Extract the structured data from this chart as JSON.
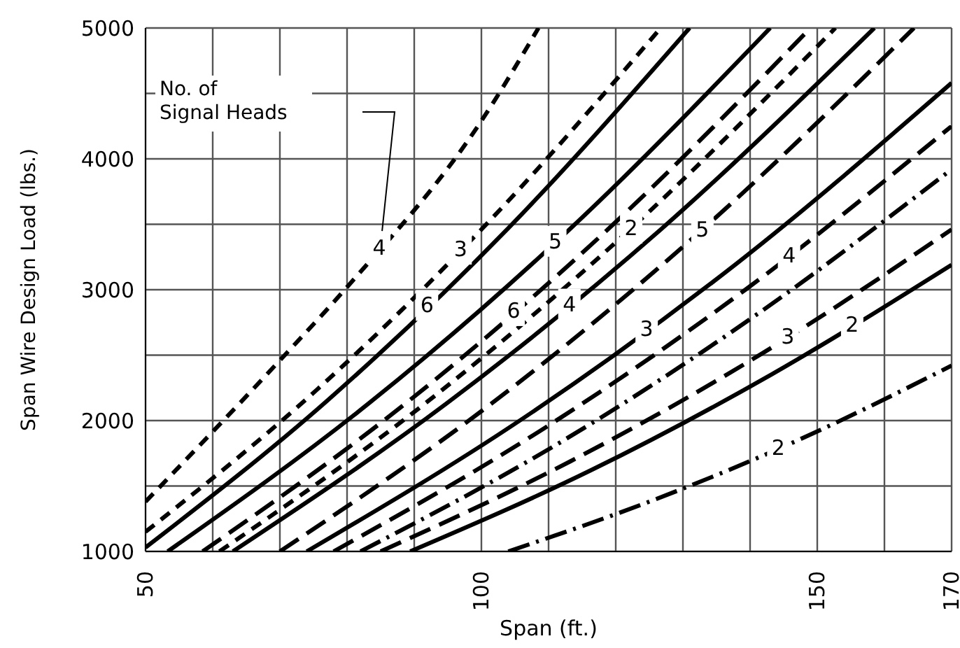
{
  "chart_data": {
    "type": "line",
    "xlabel": "Span (ft.)",
    "ylabel": "Span Wire Design Load (lbs.)",
    "xlim": [
      50,
      170
    ],
    "xticks": [
      50,
      {
        "value": 60,
        "label": null
      },
      {
        "value": 70,
        "label": null
      },
      {
        "value": 80,
        "label": null
      },
      {
        "value": 90,
        "label": null
      },
      100,
      {
        "value": 110,
        "label": null
      },
      {
        "value": 120,
        "label": null
      },
      {
        "value": 130,
        "label": null
      },
      {
        "value": 140,
        "label": null
      },
      150,
      {
        "value": 160,
        "label": null
      },
      170
    ],
    "ylim": [
      1000,
      5000
    ],
    "yticks": [
      1000,
      {
        "value": 1500,
        "label": null
      },
      2000,
      {
        "value": 2500,
        "label": null
      },
      3000,
      {
        "value": 3500,
        "label": null
      },
      4000,
      {
        "value": 4500,
        "label": null
      },
      5000
    ],
    "grid": true,
    "marker": "none",
    "series": [
      {
        "color": "#000000",
        "line_style": "dashed",
        "x": [
          50,
          70,
          80,
          100,
          108.5
        ],
        "values": [
          1380,
          2460,
          3020,
          4290,
          5000
        ]
      },
      {
        "color": "#000000",
        "line_style": "dashed",
        "x": [
          50,
          75.6,
          101.1,
          126.7
        ],
        "values": [
          1150,
          2240,
          3520,
          5000
        ]
      },
      {
        "color": "#000000",
        "line_style": "solid",
        "x": [
          50,
          77,
          104,
          131
        ],
        "values": [
          1030,
          2150,
          3470,
          5000
        ]
      },
      {
        "color": "#000000",
        "line_style": "solid",
        "x": [
          53.3,
          83.2,
          113.1,
          143
        ],
        "values": [
          1000,
          2130,
          3460,
          5000
        ]
      },
      {
        "color": "#000000",
        "line_style": "longdash",
        "x": [
          58.5,
          88.7,
          118.8,
          149
        ],
        "values": [
          1000,
          2130,
          3460,
          5000
        ]
      },
      {
        "color": "#000000",
        "line_style": "dashed",
        "x": [
          61,
          91.6,
          122.1,
          152.7
        ],
        "values": [
          1000,
          2130,
          3460,
          5000
        ]
      },
      {
        "color": "#000000",
        "line_style": "solid",
        "x": [
          63,
          94.8,
          126.7,
          158.5
        ],
        "values": [
          1000,
          2130,
          3460,
          5000
        ]
      },
      {
        "color": "#000000",
        "line_style": "longdash",
        "x": [
          70,
          101.5,
          132.9,
          164.4
        ],
        "values": [
          1000,
          2130,
          3460,
          5000
        ]
      },
      {
        "color": "#000000",
        "line_style": "solid",
        "x": [
          74,
          106,
          138,
          170
        ],
        "values": [
          1000,
          2010,
          3200,
          4580
        ]
      },
      {
        "color": "#000000",
        "line_style": "longdash",
        "x": [
          78,
          108.7,
          139.3,
          170
        ],
        "values": [
          1000,
          1920,
          3000,
          4250
        ]
      },
      {
        "color": "#000000",
        "line_style": "dashdot",
        "x": [
          82,
          111.3,
          140.7,
          170
        ],
        "values": [
          1000,
          1820,
          2800,
          3920
        ]
      },
      {
        "color": "#000000",
        "line_style": "longdash",
        "x": [
          85,
          113.3,
          141.7,
          170
        ],
        "values": [
          1000,
          1690,
          2510,
          3460
        ]
      },
      {
        "color": "#000000",
        "line_style": "solid",
        "x": [
          89.4,
          116.3,
          143.1,
          170
        ],
        "values": [
          1000,
          1620,
          2350,
          3190
        ]
      },
      {
        "color": "#000000",
        "line_style": "dashdot",
        "x": [
          104,
          126,
          148,
          170
        ],
        "values": [
          1000,
          1400,
          1870,
          2420
        ]
      }
    ],
    "annotations": [
      "No. of Signal Heads",
      {
        "text": "4",
        "x": 84.8,
        "y": 3320
      },
      {
        "text": "3",
        "x": 96.9,
        "y": 3310
      },
      {
        "text": "6",
        "x": 91.9,
        "y": 2880
      },
      {
        "text": "5",
        "x": 111,
        "y": 3370
      },
      {
        "text": "2",
        "x": 122.3,
        "y": 3470
      },
      {
        "text": "6",
        "x": 104.8,
        "y": 2840
      },
      {
        "text": "4",
        "x": 113.1,
        "y": 2890
      },
      {
        "text": "5",
        "x": 132.9,
        "y": 3460
      },
      {
        "text": "4",
        "x": 145.8,
        "y": 3260
      },
      {
        "text": "3",
        "x": 124.6,
        "y": 2700
      },
      {
        "text": "3",
        "x": 145.6,
        "y": 2640
      },
      {
        "text": "2",
        "x": 155.2,
        "y": 2730
      },
      {
        "text": "2",
        "x": 144.2,
        "y": 1790
      }
    ]
  }
}
